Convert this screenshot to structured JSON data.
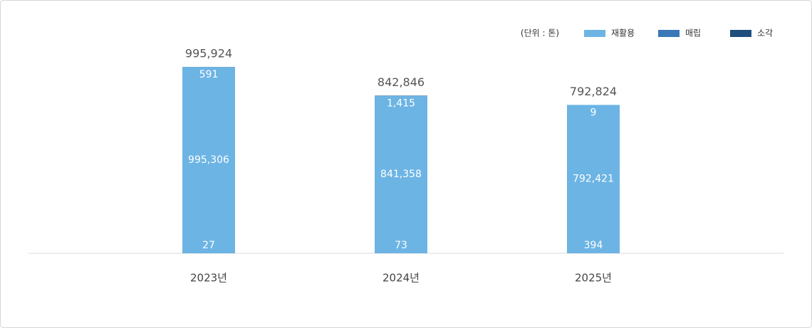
{
  "chart_data": {
    "type": "stacked-bar",
    "unit": "(단위 : 톤)",
    "categories": [
      "2023년",
      "2024년",
      "2025년"
    ],
    "series": [
      {
        "name": "재활용",
        "color": "#6cb4e4",
        "values": [
          995306,
          841358,
          792421
        ],
        "value_labels": [
          "995,306",
          "841,358",
          "792,421"
        ]
      },
      {
        "name": "매립",
        "color": "#3a78b8",
        "values": [
          27,
          73,
          394
        ]
      },
      {
        "name": "소각",
        "color": "#1f4e7d",
        "values": [
          591,
          1415,
          9
        ],
        "value_labels": [
          "591",
          "1,415",
          "9"
        ]
      }
    ],
    "totals": [
      {
        "value": 995924,
        "label": "995,924"
      },
      {
        "value": 842846,
        "label": "842,846"
      },
      {
        "value": 792824,
        "label": "792,824"
      }
    ]
  }
}
